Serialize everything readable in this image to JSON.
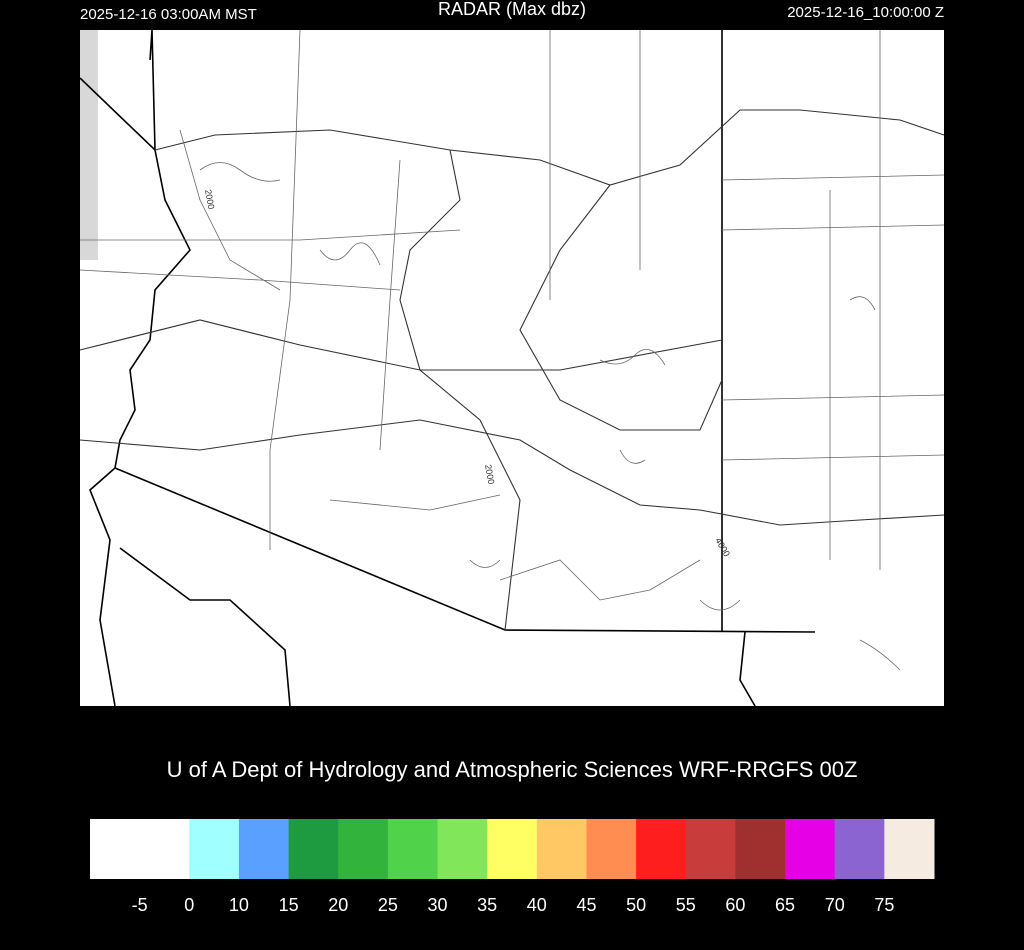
{
  "header": {
    "local_time": "2025-12-16 03:00AM MST",
    "title": "RADAR (Max dbz)",
    "utc_time": "2025-12-16_10:00:00 Z"
  },
  "map": {
    "contour_labels": [
      "2000",
      "2000",
      "4000"
    ]
  },
  "credit": "U of A Dept of Hydrology and Atmospheric Sciences WRF-RRGFS 00Z",
  "colorbar": {
    "colors": [
      "#ffffff",
      "#ffffff",
      "#a0ffff",
      "#5aa0ff",
      "#1e9b41",
      "#32b43c",
      "#50d24b",
      "#82e65a",
      "#ffff64",
      "#ffc864",
      "#ff8c50",
      "#ff1e1e",
      "#c83c3c",
      "#a03030",
      "#e600e6",
      "#8c64d2",
      "#f5ebe1"
    ],
    "ticks": [
      -5,
      0,
      10,
      15,
      20,
      25,
      30,
      35,
      40,
      45,
      50,
      55,
      60,
      65,
      70,
      75
    ]
  }
}
